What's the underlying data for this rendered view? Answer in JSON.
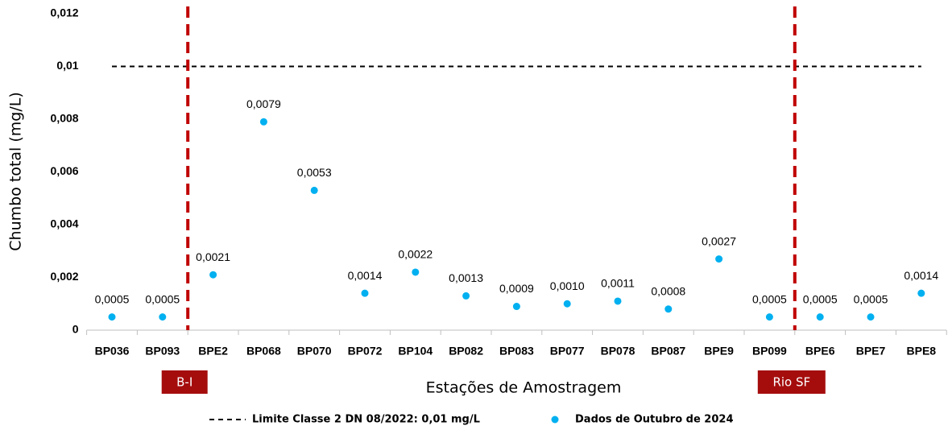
{
  "chart_data": {
    "type": "scatter",
    "x_label": "Estações de Amostragem",
    "y_label": "Chumbo total (mg/L)",
    "categories": [
      "BP036",
      "BP093",
      "BPE2",
      "BP068",
      "BP070",
      "BP072",
      "BP104",
      "BP082",
      "BP083",
      "BP077",
      "BP078",
      "BP087",
      "BPE9",
      "BP099",
      "BPE6",
      "BPE7",
      "BPE8"
    ],
    "series": [
      {
        "name": "Dados de Outubro de 2024",
        "color": "#00b0f0",
        "values": [
          0.0005,
          0.0005,
          0.0021,
          0.0079,
          0.0053,
          0.0014,
          0.0022,
          0.0013,
          0.0009,
          0.001,
          0.0011,
          0.0008,
          0.0027,
          0.0005,
          0.0005,
          0.0005,
          0.0014
        ],
        "value_labels": [
          "0,0005",
          "0,0005",
          "0,0021",
          "0,0079",
          "0,0053",
          "0,0014",
          "0,0022",
          "0,0013",
          "0,0009",
          "0,0010",
          "0,0011",
          "0,0008",
          "0,0027",
          "0,0005",
          "0,0005",
          "0,0005",
          "0,0014"
        ]
      }
    ],
    "reference_line": {
      "name": "Limite Classe 2 DN 08/2022: 0,01 mg/L",
      "value": 0.01,
      "color": "#000000"
    },
    "dividers": [
      {
        "label": "B-I",
        "between": [
          "BP093",
          "BPE2"
        ],
        "color": "#c00000"
      },
      {
        "label": "Rio SF",
        "between": [
          "BP099",
          "BPE6"
        ],
        "color": "#c00000"
      }
    ],
    "ylim": [
      0,
      0.012
    ],
    "yticks": [
      0,
      {
        "value": 0.002,
        "label": "0,002"
      },
      {
        "value": 0.004,
        "label": "0,004"
      },
      {
        "value": 0.006,
        "label": "0,006"
      },
      {
        "value": 0.008,
        "label": "0,008"
      },
      {
        "value": 0.01,
        "label": "0,01"
      },
      {
        "value": 0.012,
        "label": "0,012"
      }
    ],
    "grid": false
  }
}
